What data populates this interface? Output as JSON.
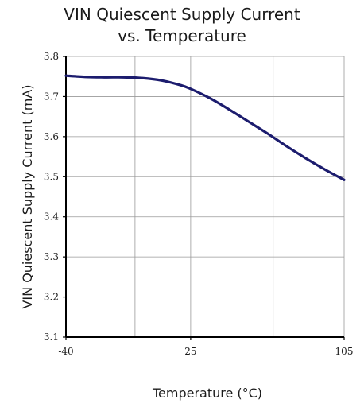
{
  "chart_data": {
    "type": "line",
    "title_line1": "VIN Quiescent Supply Current",
    "title_line2": "vs. Temperature",
    "xlabel": "Temperature (°C)",
    "ylabel": "VIN Quiescent Supply Current (mA)",
    "xlim": [
      -40,
      105
    ],
    "ylim": [
      3.1,
      3.8
    ],
    "x_ticks": [
      -40,
      25,
      105
    ],
    "x_tick_labels": [
      "-40",
      "25",
      "105"
    ],
    "y_ticks": [
      3.1,
      3.2,
      3.3,
      3.4,
      3.5,
      3.6,
      3.7,
      3.8
    ],
    "y_tick_labels": [
      "3.1",
      "3.2",
      "3.3",
      "3.4",
      "3.5",
      "3.6",
      "3.7",
      "3.8"
    ],
    "x_gridlines": [
      -40,
      -4,
      25,
      68,
      105
    ],
    "grid": true,
    "line_color": "#1c1c6e",
    "series": [
      {
        "x": [
          -40,
          -30,
          -20,
          -10,
          0,
          10,
          20,
          25,
          35,
          45,
          55,
          65,
          75,
          85,
          95,
          105
        ],
        "values": [
          3.752,
          3.749,
          3.748,
          3.748,
          3.746,
          3.74,
          3.728,
          3.719,
          3.696,
          3.668,
          3.638,
          3.608,
          3.576,
          3.546,
          3.518,
          3.492
        ]
      }
    ]
  }
}
